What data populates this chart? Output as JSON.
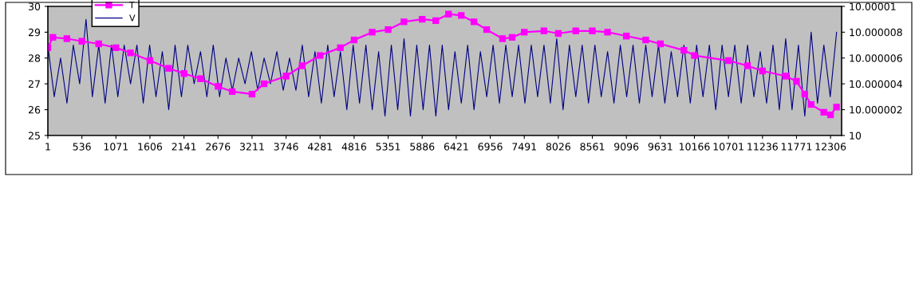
{
  "chart_data": {
    "type": "line",
    "legend": "top left",
    "grid": false,
    "xlim": [
      1,
      12480
    ],
    "xticks": [
      1,
      536,
      1071,
      1606,
      2141,
      2676,
      3211,
      3746,
      4281,
      4816,
      5351,
      5886,
      6421,
      6956,
      7491,
      8026,
      8561,
      9096,
      9631,
      10166,
      10701,
      11236,
      11771,
      12306
    ],
    "ylim": [
      25,
      30
    ],
    "yticks": [
      25,
      26,
      27,
      28,
      29,
      30
    ],
    "y2lim": [
      10,
      10.00001
    ],
    "y2ticks": [
      10,
      10.000002,
      10.000004,
      10.000006,
      10.000008,
      10.00001
    ],
    "series": [
      {
        "name": "V",
        "color": "#000080",
        "axis": "y2",
        "marker": "none",
        "line_style": "solid",
        "x": [
          1,
          101,
          201,
          301,
          401,
          501,
          601,
          701,
          801,
          901,
          1001,
          1101,
          1201,
          1301,
          1401,
          1501,
          1601,
          1701,
          1801,
          1901,
          2001,
          2101,
          2201,
          2301,
          2401,
          2501,
          2601,
          2701,
          2801,
          2901,
          3001,
          3101,
          3201,
          3301,
          3401,
          3501,
          3601,
          3701,
          3801,
          3901,
          4001,
          4101,
          4201,
          4301,
          4401,
          4501,
          4601,
          4701,
          4801,
          4901,
          5001,
          5101,
          5201,
          5301,
          5401,
          5501,
          5601,
          5701,
          5801,
          5901,
          6001,
          6101,
          6201,
          6301,
          6401,
          6501,
          6601,
          6701,
          6801,
          6901,
          7001,
          7101,
          7201,
          7301,
          7401,
          7501,
          7601,
          7701,
          7801,
          7901,
          8001,
          8101,
          8201,
          8301,
          8401,
          8501,
          8601,
          8701,
          8801,
          8901,
          9001,
          9101,
          9201,
          9301,
          9401,
          9501,
          9601,
          9701,
          9801,
          9901,
          10001,
          10101,
          10201,
          10301,
          10401,
          10501,
          10601,
          10701,
          10801,
          10901,
          11001,
          11101,
          11201,
          11301,
          11401,
          11501,
          11601,
          11701,
          11801,
          11901,
          12001,
          12101,
          12201,
          12301,
          12401
        ],
        "values": [
          10.000007,
          10.000003,
          10.000006,
          10.0000025,
          10.000007,
          10.000004,
          10.000009,
          10.000003,
          10.000007,
          10.0000025,
          10.000007,
          10.000003,
          10.000007,
          10.000004,
          10.000007,
          10.0000025,
          10.000007,
          10.000003,
          10.0000065,
          10.000002,
          10.000007,
          10.000003,
          10.000007,
          10.000004,
          10.0000065,
          10.000003,
          10.000007,
          10.000003,
          10.000006,
          10.0000035,
          10.000006,
          10.000004,
          10.0000065,
          10.0000035,
          10.000006,
          10.000004,
          10.0000065,
          10.0000035,
          10.000006,
          10.0000035,
          10.000007,
          10.000003,
          10.0000065,
          10.0000025,
          10.000007,
          10.000003,
          10.0000065,
          10.000002,
          10.000007,
          10.0000025,
          10.000007,
          10.000002,
          10.0000065,
          10.0000015,
          10.000007,
          10.000002,
          10.0000075,
          10.0000015,
          10.000007,
          10.000002,
          10.000007,
          10.0000015,
          10.000007,
          10.000002,
          10.0000065,
          10.0000025,
          10.000007,
          10.000002,
          10.0000065,
          10.000003,
          10.000007,
          10.0000025,
          10.000007,
          10.000003,
          10.000007,
          10.0000025,
          10.000007,
          10.000003,
          10.000007,
          10.0000025,
          10.0000075,
          10.000002,
          10.000007,
          10.000003,
          10.000007,
          10.0000025,
          10.000007,
          10.000003,
          10.0000065,
          10.0000025,
          10.000007,
          10.000003,
          10.000007,
          10.0000025,
          10.000007,
          10.000003,
          10.000007,
          10.0000025,
          10.0000065,
          10.000003,
          10.000007,
          10.0000025,
          10.000007,
          10.000003,
          10.000007,
          10.000002,
          10.000007,
          10.000003,
          10.000007,
          10.0000025,
          10.000007,
          10.000003,
          10.0000065,
          10.0000025,
          10.000007,
          10.000002,
          10.0000075,
          10.000002,
          10.000007,
          10.0000015,
          10.000008,
          10.0000025,
          10.000007,
          10.000003,
          10.000008
        ]
      },
      {
        "name": "T",
        "color": "#ff00ff",
        "marker": "square",
        "line_style": "solid",
        "x": [
          1,
          80,
          300,
          536,
          800,
          1071,
          1300,
          1606,
          1900,
          2141,
          2400,
          2676,
          2900,
          3211,
          3400,
          3746,
          4000,
          4281,
          4600,
          4816,
          5100,
          5351,
          5600,
          5886,
          6100,
          6300,
          6500,
          6700,
          6900,
          7150,
          7300,
          7491,
          7800,
          8026,
          8300,
          8561,
          8800,
          9096,
          9400,
          9631,
          10000,
          10166,
          10701,
          11000,
          11236,
          11600,
          11771,
          11900,
          12000,
          12200,
          12306,
          12400
        ],
        "values": [
          28.4,
          28.8,
          28.75,
          28.65,
          28.55,
          28.4,
          28.2,
          27.9,
          27.6,
          27.4,
          27.2,
          26.9,
          26.7,
          26.6,
          27.0,
          27.3,
          27.7,
          28.1,
          28.4,
          28.7,
          29.0,
          29.1,
          29.4,
          29.5,
          29.45,
          29.7,
          29.65,
          29.4,
          29.1,
          28.75,
          28.8,
          29.0,
          29.05,
          28.95,
          29.05,
          29.05,
          29.0,
          28.85,
          28.7,
          28.55,
          28.3,
          28.1,
          27.9,
          27.7,
          27.5,
          27.3,
          27.1,
          26.6,
          26.2,
          25.9,
          25.8,
          26.1
        ]
      }
    ]
  }
}
